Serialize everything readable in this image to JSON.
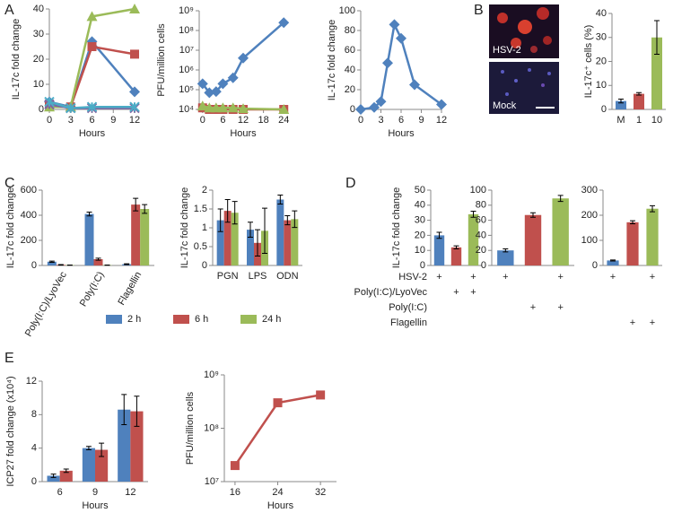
{
  "chart_data": [
    {
      "type": "line",
      "panel": "A",
      "ylabel": "IL-17c fold change",
      "xlabel": "Hours",
      "x": [
        0,
        3,
        6,
        12
      ],
      "xlim": [
        0,
        12
      ],
      "xticks": [
        0,
        3,
        6,
        9,
        12
      ],
      "ylim": [
        0,
        40
      ],
      "yticks": [
        0,
        10,
        20,
        30,
        40
      ],
      "series": [
        {
          "color": "#4f81bd",
          "marker": "diamond",
          "values": [
            3,
            1,
            27,
            7
          ]
        },
        {
          "color": "#c0504d",
          "marker": "square",
          "values": [
            2,
            1,
            25,
            22
          ]
        },
        {
          "color": "#9bbb59",
          "marker": "triangle",
          "values": [
            1,
            1,
            37,
            40
          ]
        },
        {
          "color": "#8064a2",
          "marker": "x",
          "values": [
            2,
            0.5,
            0.5,
            0.5
          ]
        },
        {
          "color": "#4bacc6",
          "marker": "x",
          "values": [
            3,
            0.5,
            1,
            1
          ]
        }
      ]
    },
    {
      "type": "line",
      "ylabel": "PFU/million cells",
      "xlabel": "Hours",
      "log_y": true,
      "x": [
        0,
        2,
        4,
        6,
        9,
        12,
        24
      ],
      "xlim": [
        -1,
        25
      ],
      "xticks": [
        0,
        6,
        12,
        18,
        24
      ],
      "ylim": [
        10000,
        1000000000
      ],
      "yticks": [
        {
          "value": 10000,
          "label": "10⁴"
        },
        {
          "value": 100000,
          "label": "10⁵"
        },
        {
          "value": 1000000,
          "label": "10⁶"
        },
        {
          "value": 10000000,
          "label": "10⁷"
        },
        {
          "value": 100000000,
          "label": "10⁸"
        },
        {
          "value": 1000000000,
          "label": "10⁹"
        }
      ],
      "series": [
        {
          "color": "#4f81bd",
          "marker": "diamond",
          "values": [
            200000,
            70000,
            80000,
            200000,
            400000,
            4000000,
            250000000
          ]
        },
        {
          "color": "#c0504d",
          "marker": "square",
          "values": [
            12000,
            10000,
            10000,
            10000,
            10000,
            10000,
            10000
          ]
        },
        {
          "color": "#9bbb59",
          "marker": "triangle",
          "values": [
            15000,
            12000,
            12000,
            12000,
            12000,
            11000,
            10000
          ]
        }
      ]
    },
    {
      "type": "line",
      "ylabel": "IL-17c fold change",
      "xlabel": "Hours",
      "x": [
        0,
        2,
        3,
        4,
        5,
        6,
        8,
        12
      ],
      "xlim": [
        0,
        12
      ],
      "xticks": [
        0,
        3,
        6,
        9,
        12
      ],
      "ylim": [
        0,
        100
      ],
      "yticks": [
        0,
        20,
        40,
        60,
        80,
        100
      ],
      "series": [
        {
          "color": "#4f81bd",
          "marker": "diamond",
          "values": [
            0,
            2,
            8,
            47,
            86,
            72,
            25,
            5
          ]
        }
      ]
    },
    {
      "type": "bar",
      "panel": "B",
      "ylabel": "IL-17c⁺ cells (%)",
      "categories": [
        "M",
        "1",
        "10"
      ],
      "values": [
        3.5,
        6.5,
        30
      ],
      "errors": [
        0.8,
        0.5,
        7
      ],
      "colors": [
        "#4f81bd",
        "#c0504d",
        "#9bbb59"
      ],
      "ylim": [
        0,
        40
      ],
      "yticks": [
        0,
        10,
        20,
        30,
        40
      ]
    },
    {
      "type": "bar",
      "panel": "C",
      "ylabel": "IL-17c fold change",
      "legend": "bottom",
      "categories": [
        "Poly(I:C)/LyoVec",
        "Poly(I:C)",
        "Flagellin"
      ],
      "ylim": [
        0,
        600
      ],
      "yticks": [
        0,
        200,
        400,
        600
      ],
      "series": [
        {
          "name": "2 h",
          "color": "#4f81bd",
          "values": [
            30,
            410,
            10
          ],
          "errors": [
            5,
            15,
            3
          ]
        },
        {
          "name": "6 h",
          "color": "#c0504d",
          "values": [
            5,
            50,
            485
          ],
          "errors": [
            2,
            8,
            50
          ]
        },
        {
          "name": "24 h",
          "color": "#9bbb59",
          "values": [
            3,
            3,
            450
          ],
          "errors": [
            1,
            1,
            35
          ]
        }
      ]
    },
    {
      "type": "bar",
      "ylabel": "IL-17c fold change",
      "categories": [
        "PGN",
        "LPS",
        "ODN"
      ],
      "ylim": [
        0,
        2
      ],
      "yticks": [
        0,
        0.5,
        1,
        1.5,
        2
      ],
      "series": [
        {
          "color": "#4f81bd",
          "values": [
            1.2,
            0.95,
            1.75
          ],
          "errors": [
            0.3,
            0.2,
            0.12
          ]
        },
        {
          "color": "#c0504d",
          "values": [
            1.45,
            0.6,
            1.2
          ],
          "errors": [
            0.3,
            0.35,
            0.12
          ]
        },
        {
          "color": "#9bbb59",
          "values": [
            1.4,
            0.92,
            1.23
          ],
          "errors": [
            0.3,
            0.6,
            0.22
          ]
        }
      ]
    },
    {
      "type": "bar",
      "panel": "D",
      "ylabel": "IL-17c fold change",
      "values": [
        20,
        12,
        34
      ],
      "errors": [
        2,
        1,
        2
      ],
      "colors": [
        "#4f81bd",
        "#c0504d",
        "#9bbb59"
      ],
      "ylim": [
        0,
        50
      ],
      "yticks": [
        0,
        10,
        20,
        30,
        40,
        50
      ]
    },
    {
      "type": "bar",
      "values": [
        20,
        67,
        89
      ],
      "errors": [
        2,
        3,
        4
      ],
      "colors": [
        "#4f81bd",
        "#c0504d",
        "#9bbb59"
      ],
      "ylim": [
        0,
        100
      ],
      "yticks": [
        0,
        20,
        40,
        60,
        80,
        100
      ]
    },
    {
      "type": "bar",
      "values": [
        20,
        172,
        226
      ],
      "errors": [
        2,
        6,
        12
      ],
      "colors": [
        "#4f81bd",
        "#c0504d",
        "#9bbb59"
      ],
      "ylim": [
        0,
        300
      ],
      "yticks": [
        0,
        100,
        200,
        300
      ]
    },
    {
      "type": "bar",
      "panel": "E",
      "ylabel": "ICP27 fold change (x10⁴)",
      "xlabel": "Hours",
      "categories": [
        "6",
        "9",
        "12"
      ],
      "ylim": [
        0,
        12
      ],
      "yticks": [
        0,
        4,
        8,
        12
      ],
      "series": [
        {
          "color": "#4f81bd",
          "values": [
            0.7,
            4,
            8.6
          ],
          "errors": [
            0.2,
            0.2,
            1.8
          ]
        },
        {
          "color": "#c0504d",
          "values": [
            1.3,
            3.8,
            8.4
          ],
          "errors": [
            0.2,
            0.8,
            1.8
          ]
        }
      ]
    },
    {
      "type": "line",
      "ylabel": "PFU/million cells",
      "xlabel": "Hours",
      "log_y": true,
      "x": [
        16,
        24,
        32
      ],
      "xlim": [
        14,
        35
      ],
      "xticks": [
        16,
        24,
        32
      ],
      "ylim": [
        10000000,
        1000000000
      ],
      "yticks": [
        {
          "value": 10000000,
          "label": "10⁷"
        },
        {
          "value": 100000000,
          "label": "10⁸"
        },
        {
          "value": 1000000000,
          "label": "10⁹"
        }
      ],
      "series": [
        {
          "color": "#c0504d",
          "marker": "square",
          "values": [
            20000000,
            300000000,
            420000000
          ]
        }
      ]
    }
  ],
  "micrographs": [
    {
      "label": "HSV-2"
    },
    {
      "label": "Mock"
    }
  ],
  "treatment_table": {
    "rows": [
      {
        "label": "HSV-2",
        "cells": [
          "+",
          null,
          "+",
          "+",
          null,
          "+",
          "+",
          null,
          "+"
        ]
      },
      {
        "label": "Poly(I:C)/LyoVec",
        "cells": [
          null,
          "+",
          "+",
          null,
          null,
          null,
          null,
          null,
          null
        ]
      },
      {
        "label": "Poly(I:C)",
        "cells": [
          null,
          null,
          null,
          null,
          "+",
          "+",
          null,
          null,
          null
        ]
      },
      {
        "label": "Flagellin",
        "cells": [
          null,
          null,
          null,
          null,
          null,
          null,
          null,
          "+",
          "+"
        ]
      }
    ]
  }
}
